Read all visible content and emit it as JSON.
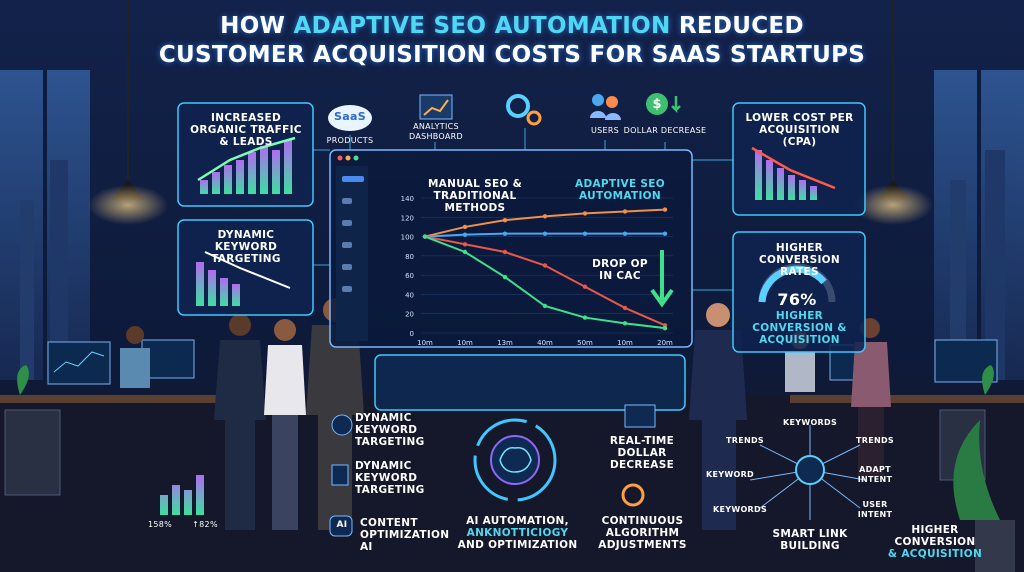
{
  "title": {
    "part1": "HOW",
    "highlight": "ADAPTIVE SEO AUTOMATION",
    "part2": "REDUCED",
    "line2": "CUSTOMER ACQUISITION COSTS FOR SAAS STARTUPS"
  },
  "left_panels": [
    {
      "title": "INCREASED ORGANIC TRAFFIC & LEADS"
    },
    {
      "title": "DYNAMIC KEYWORD TARGETING"
    }
  ],
  "top_icons": [
    {
      "badge": "SaaS",
      "label": "PRODUCTS"
    },
    {
      "label": "ANALYTICS DASHBOARD"
    },
    {
      "label": "USERS"
    },
    {
      "label": "DOLLAR DECREASE"
    }
  ],
  "right_panels": [
    {
      "title": "LOWER COST PER ACQUISITION (CPA)"
    },
    {
      "title": "HIGHER CONVERSION RATES",
      "gauge_value": "76%",
      "caption": "HIGHER CONVERSION & ACQUISITION"
    }
  ],
  "dashboard": {
    "label_manual": "MANUAL SEO & TRADITIONAL METHODS",
    "label_adaptive": "ADAPTIVE SEO AUTOMATION",
    "annotation": "DROP OP IN CAC",
    "chart": {
      "type": "line",
      "categories": [
        "10m",
        "10m",
        "13m",
        "40m",
        "50m",
        "10m",
        "20m"
      ],
      "ylim": [
        0,
        140
      ],
      "yticks": [
        0,
        20,
        40,
        60,
        80,
        100,
        120,
        140
      ],
      "series": [
        {
          "color": "#f0904a",
          "values": [
            100,
            110,
            117,
            121,
            124,
            126,
            128
          ]
        },
        {
          "color": "#4aa8f0",
          "values": [
            100,
            102,
            103,
            103,
            103,
            103,
            103
          ]
        },
        {
          "color": "#e8574a",
          "values": [
            100,
            92,
            84,
            70,
            48,
            26,
            8
          ]
        },
        {
          "color": "#3ee08a",
          "values": [
            100,
            84,
            58,
            28,
            16,
            10,
            5
          ]
        }
      ]
    }
  },
  "features": {
    "left": [
      "DYNAMIC KEYWORD TARGETING",
      "DYNAMIC KEYWORD TARGETING",
      "CONTENT OPTIMIZATION AI"
    ],
    "ai_badge": "AI",
    "hub": [
      "AI AUTOMATION,",
      "ANKNOTTICIOGY",
      "AND OPTIMIZATION"
    ],
    "right": [
      "REAL-TIME DOLLAR DECREASE",
      "CONTINUOUS ALGORITHM ADJUSTMENTS"
    ]
  },
  "network": {
    "nodes": [
      "KEYWORDS",
      "TRENDS",
      "TRENDS",
      "KEYWORD",
      "ADAPT INTENT",
      "KEYWORDS",
      "USER INTENT"
    ],
    "caption": "SMART LINK BUILDING"
  },
  "stats": [
    "158%",
    "↑82%"
  ],
  "footer_caption": [
    "HIGHER CONVERSION",
    "& ACQUISITION"
  ]
}
